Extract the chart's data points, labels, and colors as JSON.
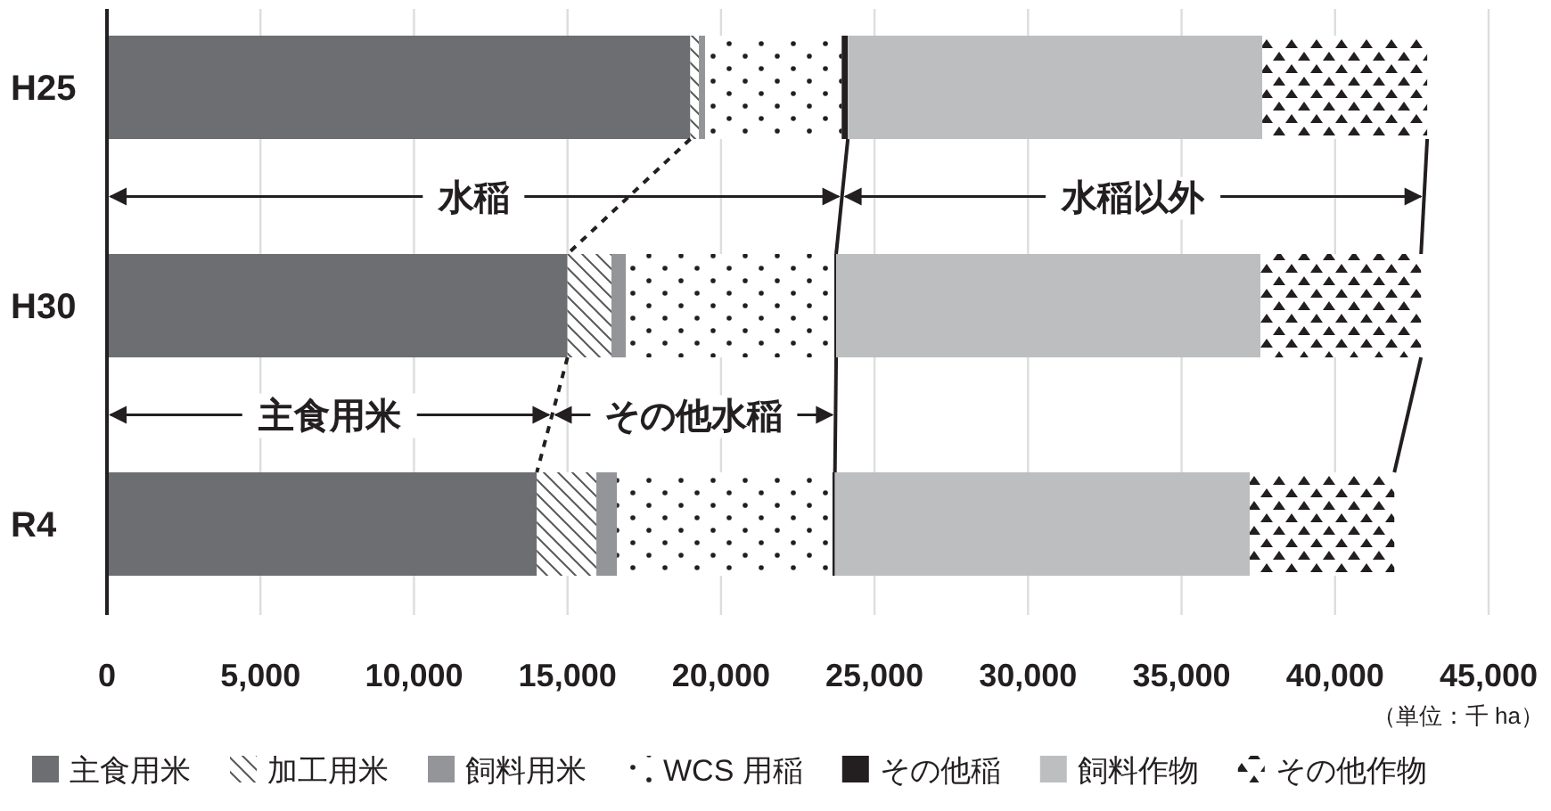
{
  "chart_data": {
    "type": "bar",
    "orientation": "horizontal",
    "stacked": true,
    "categories": [
      "H25",
      "H30",
      "R4"
    ],
    "series": [
      {
        "name": "主食用米",
        "color": "#6d6e71",
        "values": [
          19000,
          15000,
          14000
        ]
      },
      {
        "name": "加工用米",
        "color": "#58595b",
        "values": [
          280,
          1430,
          1940
        ]
      },
      {
        "name": "飼料用米",
        "color": "#939598",
        "values": [
          200,
          470,
          670
        ]
      },
      {
        "name": "WCS 用稲",
        "color": "#ffffff",
        "values": [
          4450,
          6790,
          7020
        ]
      },
      {
        "name": "その他稲",
        "color": "#231f20",
        "values": [
          200,
          60,
          80
        ]
      },
      {
        "name": "飼料作物",
        "color": "#bcbec0",
        "values": [
          13500,
          13820,
          13510
        ]
      },
      {
        "name": "その他作物",
        "color": "#231f20",
        "values": [
          5370,
          5230,
          4710
        ]
      }
    ],
    "xlim": [
      0,
      45000
    ],
    "xticks": [
      0,
      {
        "value": 5000,
        "label": "5,000"
      },
      {
        "value": 10000,
        "label": "10,000"
      },
      {
        "value": 15000,
        "label": "15,000"
      },
      {
        "value": 20000,
        "label": "20,000"
      },
      {
        "value": 25000,
        "label": "25,000"
      },
      {
        "value": 30000,
        "label": "30,000"
      },
      {
        "value": 35000,
        "label": "35,000"
      },
      {
        "value": 40000,
        "label": "40,000"
      },
      {
        "value": 45000,
        "label": "45,000"
      }
    ],
    "grid": "x",
    "legend": "bottom",
    "annotations": [
      "水稲",
      "水稲以外",
      "主食用米",
      "その他水稲",
      "（単位：千 ha）"
    ]
  }
}
